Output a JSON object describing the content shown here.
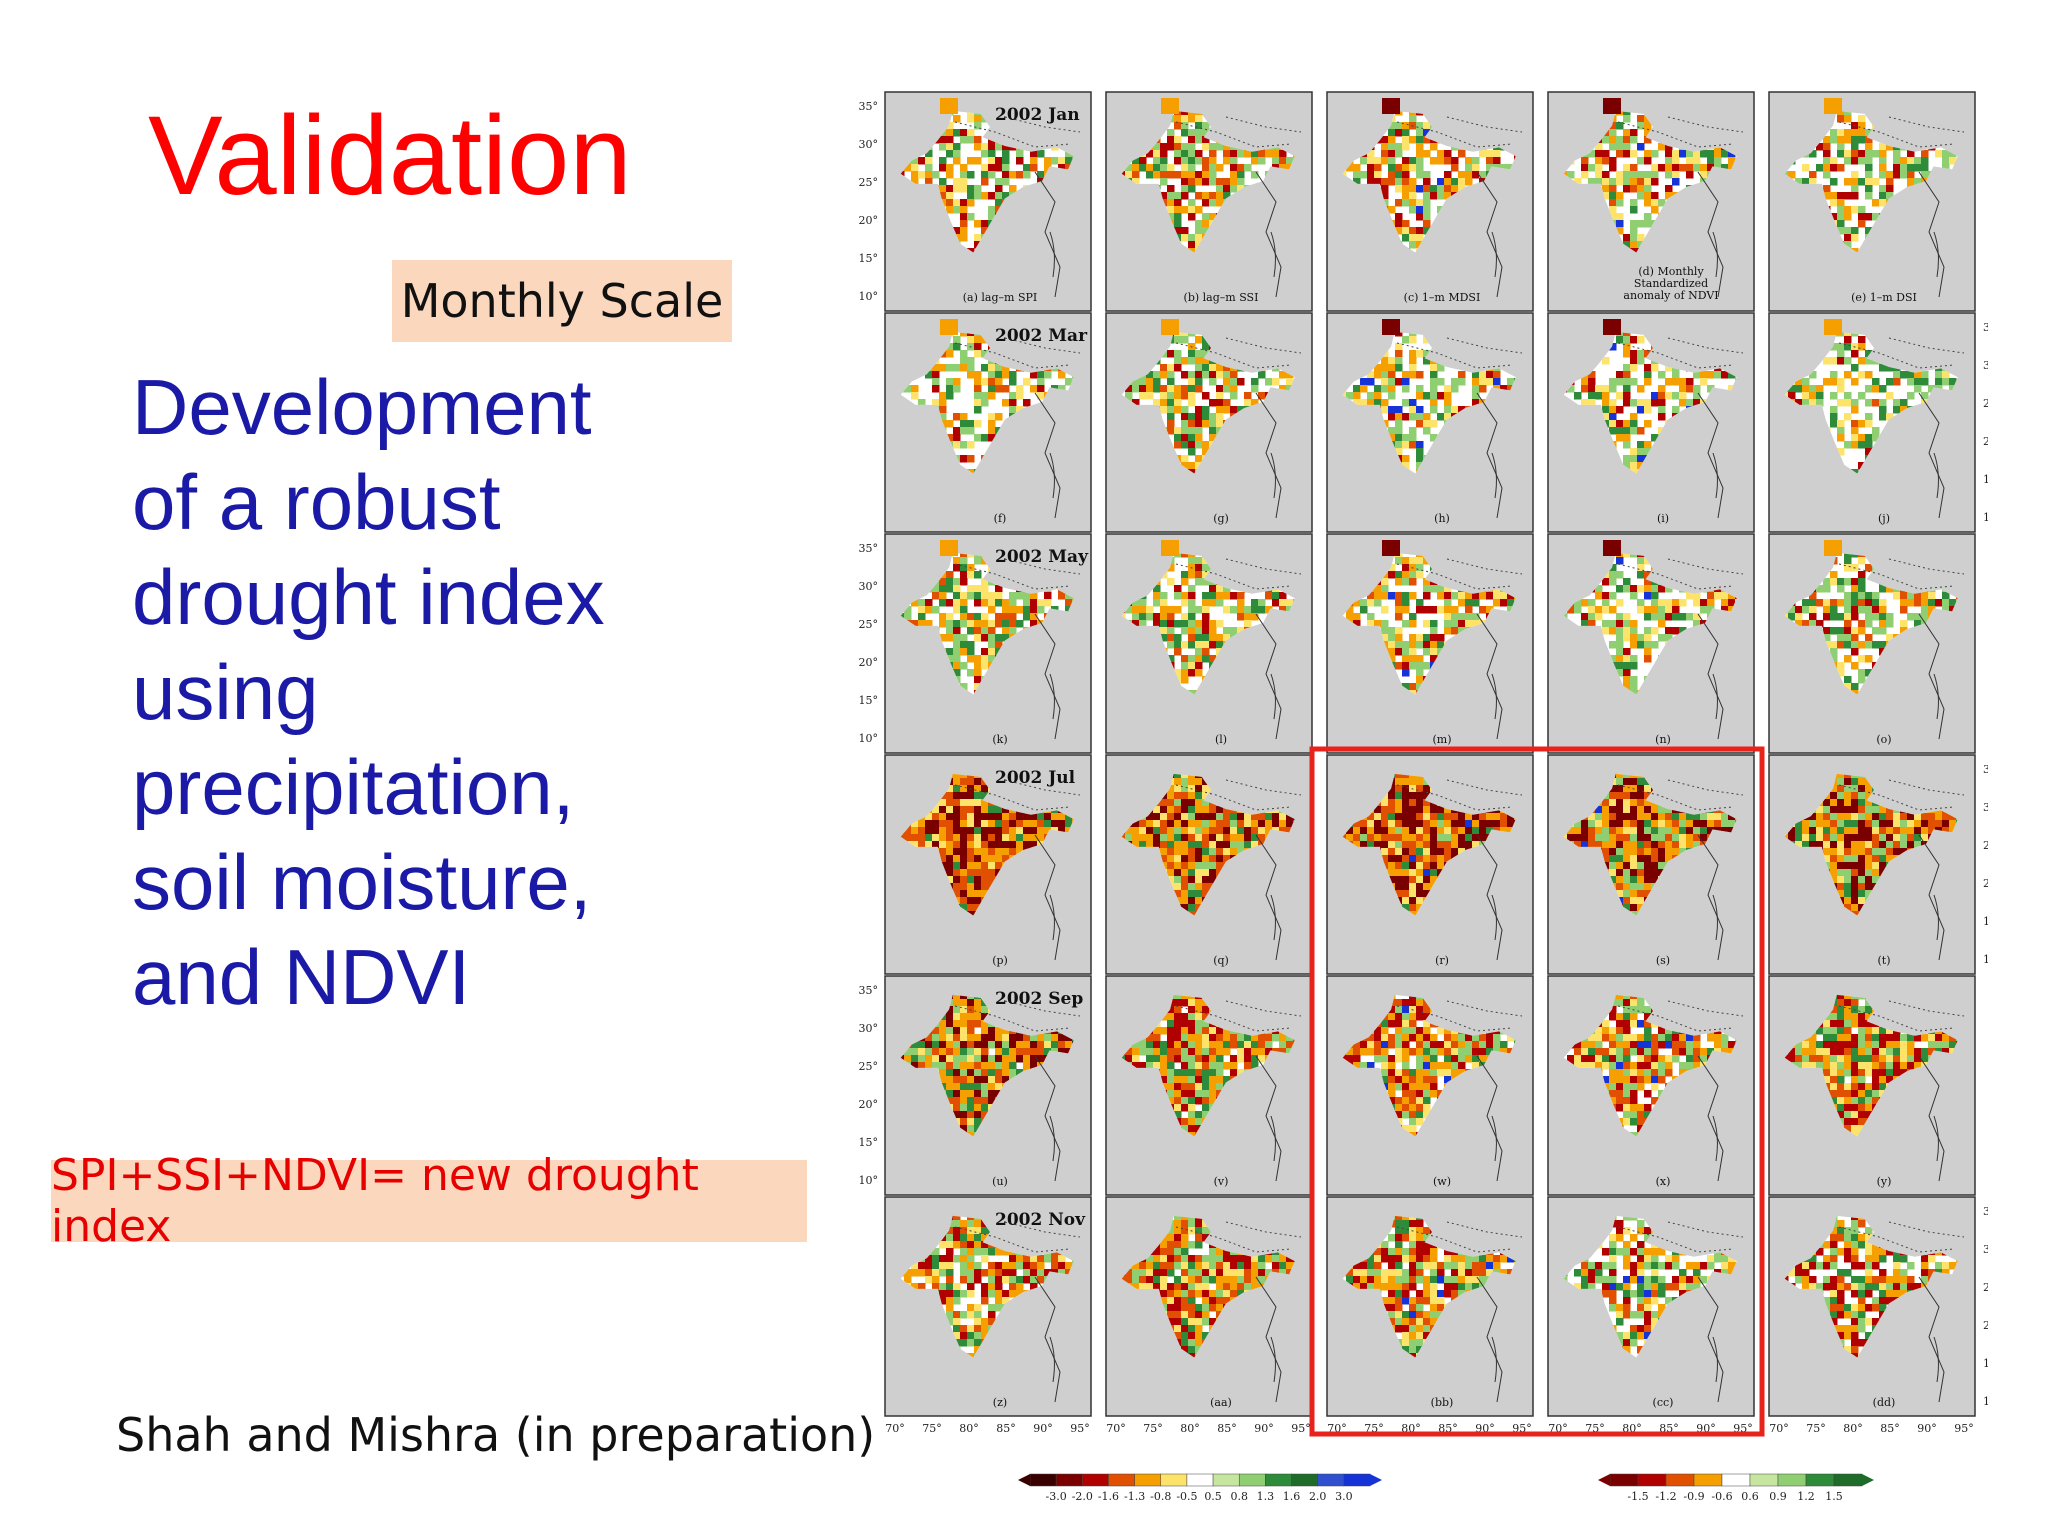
{
  "slide": {
    "title": "Validation",
    "scale_badge": "Monthly Scale",
    "development_lines": [
      "Development",
      "of a robust",
      "drought index",
      "using",
      "precipitation,",
      "soil moisture,",
      "and NDVI"
    ],
    "formula_badge": "SPI+SSI+NDVI= new drought index",
    "citation": "Shah and Mishra (in preparation)",
    "colors": {
      "title": "#ff0000",
      "body": "#1a1aa6",
      "badge_bg": "#fad7bd",
      "highlight_box": "#e8231c"
    }
  },
  "figure": {
    "row_titles": [
      "2002 Jan",
      "2002 Mar",
      "2002 May",
      "2002 Jul",
      "2002 Sep",
      "2002 Nov"
    ],
    "top_row_labels": [
      "(a) lag–m SPI",
      "(b) lag–m SSI",
      "(c) 1–m MDSI",
      "(d) Monthly Standardized anomaly of NDVI",
      "(e) 1–m DSI"
    ],
    "panel_labels": [
      [
        "(a)",
        "(b)",
        "(c)",
        "(d)",
        "(e)"
      ],
      [
        "(f)",
        "(g)",
        "(h)",
        "(i)",
        "(j)"
      ],
      [
        "(k)",
        "(l)",
        "(m)",
        "(n)",
        "(o)"
      ],
      [
        "(p)",
        "(q)",
        "(r)",
        "(s)",
        "(t)"
      ],
      [
        "(u)",
        "(v)",
        "(w)",
        "(x)",
        "(y)"
      ],
      [
        "(z)",
        "(aa)",
        "(bb)",
        "(cc)",
        "(dd)"
      ]
    ],
    "lat_ticks": [
      "35",
      "30",
      "25",
      "20",
      "15",
      "10"
    ],
    "lon_ticks": [
      "70",
      "75",
      "80",
      "85",
      "90",
      "95"
    ],
    "colorbar_left": [
      "-3.0",
      "-2.0",
      "-1.6",
      "-1.3",
      "-0.8",
      "-0.5",
      "0.5",
      "0.8",
      "1.3",
      "1.6",
      "2.0",
      "3.0"
    ],
    "colorbar_right": [
      "-1.5",
      "-1.2",
      "-0.9",
      "-0.6",
      "0.6",
      "0.9",
      "1.2",
      "1.5"
    ],
    "highlight": {
      "rows": [
        "2002 Jul",
        "2002 Sep",
        "2002 Nov"
      ],
      "columns": [
        "(c) 1–m MDSI",
        "(d) Monthly Standardized anomaly of NDVI"
      ]
    },
    "drought_intensity": [
      [
        0.25,
        0.3,
        0.3,
        0.25,
        0.15
      ],
      [
        0.15,
        0.25,
        0.15,
        0.2,
        0.1
      ],
      [
        0.3,
        0.3,
        0.3,
        0.15,
        0.25
      ],
      [
        0.9,
        0.8,
        0.85,
        0.7,
        0.7
      ],
      [
        0.65,
        0.6,
        0.55,
        0.5,
        0.6
      ],
      [
        0.45,
        0.6,
        0.55,
        0.3,
        0.4
      ]
    ],
    "palette": {
      "severe": "#7a0000",
      "extreme": "#b00000",
      "moderate": "#e05000",
      "mild": "#f5a000",
      "weak": "#fde36a",
      "wet": "#8fcf72",
      "very_wet": "#2e8b3a",
      "extreme_wet": "#1533d6",
      "map_bg": "#cfcfcf",
      "land": "#ffffff"
    }
  }
}
